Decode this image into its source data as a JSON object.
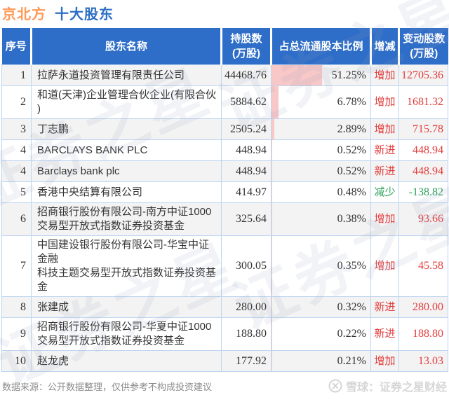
{
  "title": {
    "stock": "京北方",
    "suffix": "十大股东"
  },
  "table": {
    "headers": [
      "序号",
      "股东名称",
      "持股数\n(万股)",
      "占总流通股本比例",
      "增减",
      "变动股数\n(万股)"
    ],
    "rows": [
      {
        "no": "1",
        "name": "拉萨永道投资管理有限责任公司",
        "shares": "44468.76",
        "pct": "51.25%",
        "pct_value": 51.25,
        "change_dir": "增加",
        "change_shares": "12705.36",
        "trend": "up"
      },
      {
        "no": "2",
        "name": "和道(天津)企业管理合伙企业(有限合伙\n)",
        "shares": "5884.62",
        "pct": "6.78%",
        "pct_value": 6.78,
        "change_dir": "增加",
        "change_shares": "1681.32",
        "trend": "up"
      },
      {
        "no": "3",
        "name": "丁志鹏",
        "shares": "2505.24",
        "pct": "2.89%",
        "pct_value": 2.89,
        "change_dir": "增加",
        "change_shares": "715.78",
        "trend": "up"
      },
      {
        "no": "4",
        "name": "BARCLAYS BANK PLC",
        "shares": "448.94",
        "pct": "0.52%",
        "pct_value": 0.52,
        "change_dir": "新进",
        "change_shares": "448.94",
        "trend": "up"
      },
      {
        "no": "4",
        "name": "Barclays bank plc",
        "shares": "448.94",
        "pct": "0.52%",
        "pct_value": 0.52,
        "change_dir": "新进",
        "change_shares": "448.94",
        "trend": "up"
      },
      {
        "no": "5",
        "name": "香港中央结算有限公司",
        "shares": "414.97",
        "pct": "0.48%",
        "pct_value": 0.48,
        "change_dir": "减少",
        "change_shares": "-138.82",
        "trend": "down"
      },
      {
        "no": "6",
        "name": "招商银行股份有限公司-南方中证1000\n交易型开放式指数证券投资基金",
        "shares": "325.64",
        "pct": "0.38%",
        "pct_value": 0.38,
        "change_dir": "增加",
        "change_shares": "93.66",
        "trend": "up"
      },
      {
        "no": "7",
        "name": "中国建设银行股份有限公司-华宝中证金融\n科技主题交易型开放式指数证券投资基金",
        "shares": "300.05",
        "pct": "0.35%",
        "pct_value": 0.35,
        "change_dir": "增加",
        "change_shares": "45.58",
        "trend": "up"
      },
      {
        "no": "8",
        "name": "张建成",
        "shares": "280.00",
        "pct": "0.32%",
        "pct_value": 0.32,
        "change_dir": "新进",
        "change_shares": "280.00",
        "trend": "up"
      },
      {
        "no": "9",
        "name": "招商银行股份有限公司-华夏中证1000\n交易型开放式指数证券投资基金",
        "shares": "188.80",
        "pct": "0.22%",
        "pct_value": 0.22,
        "change_dir": "新进",
        "change_shares": "188.80",
        "trend": "up"
      },
      {
        "no": "10",
        "name": "赵龙虎",
        "shares": "177.92",
        "pct": "0.21%",
        "pct_value": 0.21,
        "change_dir": "增加",
        "change_shares": "13.03",
        "trend": "up"
      }
    ]
  },
  "footer": {
    "source_note": "数据来源：公开数据整理，仅供参考不构成投资建议",
    "brand": "雪球：证券之星财经"
  },
  "watermark_text": "证券之星",
  "colors": {
    "header_bg": "#2e6ec8",
    "title_stock": "#ff9a57",
    "title_suffix": "#2d6fc4",
    "up_red": "#e23c3c",
    "down_green": "#2da05a",
    "percent_bar": "#f8c8c8",
    "row_alt_bg": "#f3f3f3",
    "cell_border": "#bdd5f0"
  },
  "chart_data": {
    "type": "table",
    "title": "京北方 十大股东",
    "columns": [
      "序号",
      "股东名称",
      "持股数(万股)",
      "占总流通股本比例",
      "增减",
      "变动股数(万股)"
    ],
    "rows": [
      [
        "1",
        "拉萨永道投资管理有限责任公司",
        44468.76,
        "51.25%",
        "增加",
        12705.36
      ],
      [
        "2",
        "和道(天津)企业管理合伙企业(有限合伙)",
        5884.62,
        "6.78%",
        "增加",
        1681.32
      ],
      [
        "3",
        "丁志鹏",
        2505.24,
        "2.89%",
        "增加",
        715.78
      ],
      [
        "4",
        "BARCLAYS BANK PLC",
        448.94,
        "0.52%",
        "新进",
        448.94
      ],
      [
        "4",
        "Barclays bank plc",
        448.94,
        "0.52%",
        "新进",
        448.94
      ],
      [
        "5",
        "香港中央结算有限公司",
        414.97,
        "0.48%",
        "减少",
        -138.82
      ],
      [
        "6",
        "招商银行股份有限公司-南方中证1000交易型开放式指数证券投资基金",
        325.64,
        "0.38%",
        "增加",
        93.66
      ],
      [
        "7",
        "中国建设银行股份有限公司-华宝中证金融科技主题交易型开放式指数证券投资基金",
        300.05,
        "0.35%",
        "增加",
        45.58
      ],
      [
        "8",
        "张建成",
        280.0,
        "0.32%",
        "新进",
        280.0
      ],
      [
        "9",
        "招商银行股份有限公司-华夏中证1000交易型开放式指数证券投资基金",
        188.8,
        "0.22%",
        "新进",
        188.8
      ],
      [
        "10",
        "赵龙虎",
        177.92,
        "0.21%",
        "增加",
        13.03
      ]
    ],
    "source_note": "数据来源：公开数据整理，仅供参考不构成投资建议"
  }
}
